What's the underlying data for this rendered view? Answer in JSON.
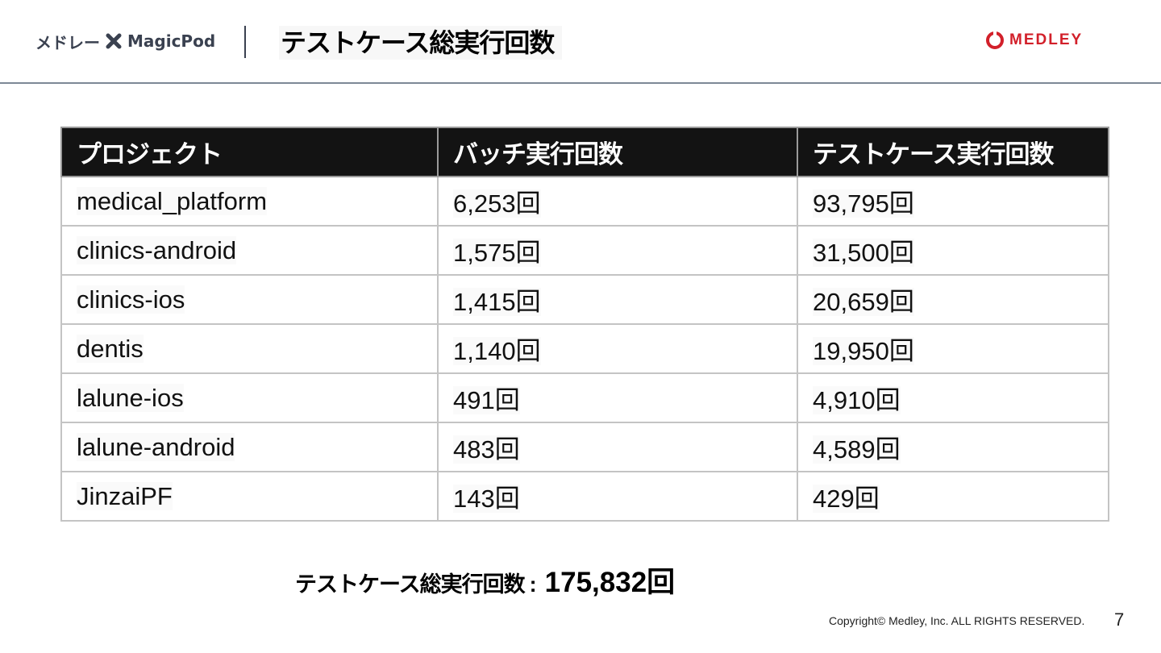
{
  "header": {
    "brand_left": "メドレー",
    "brand_right": "MagicPod",
    "title": "テストケース総実行回数",
    "logo_text": "MEDLEY",
    "brand_color": "#d2202a",
    "icons": [
      "cross-icon",
      "medley-logo-icon"
    ]
  },
  "table": {
    "headers": [
      "プロジェクト",
      "バッチ実行回数",
      "テストケース実行回数"
    ],
    "rows": [
      [
        "medical_platform",
        "6,253回",
        "93,795回"
      ],
      [
        "clinics-android",
        "1,575回",
        "31,500回"
      ],
      [
        "clinics-ios",
        "1,415回",
        "20,659回"
      ],
      [
        "dentis",
        "1,140回",
        "19,950回"
      ],
      [
        "lalune-ios",
        "491回",
        "4,910回"
      ],
      [
        "lalune-android",
        "483回",
        "4,589回"
      ],
      [
        "JinzaiPF",
        "143回",
        "429回"
      ]
    ]
  },
  "total": {
    "label": "テストケース総実行回数",
    "separator": ":",
    "value": "175,832回"
  },
  "footer": {
    "copyright": "Copyright© Medley, Inc. ALL RIGHTS RESERVED.",
    "page_number": "7"
  }
}
